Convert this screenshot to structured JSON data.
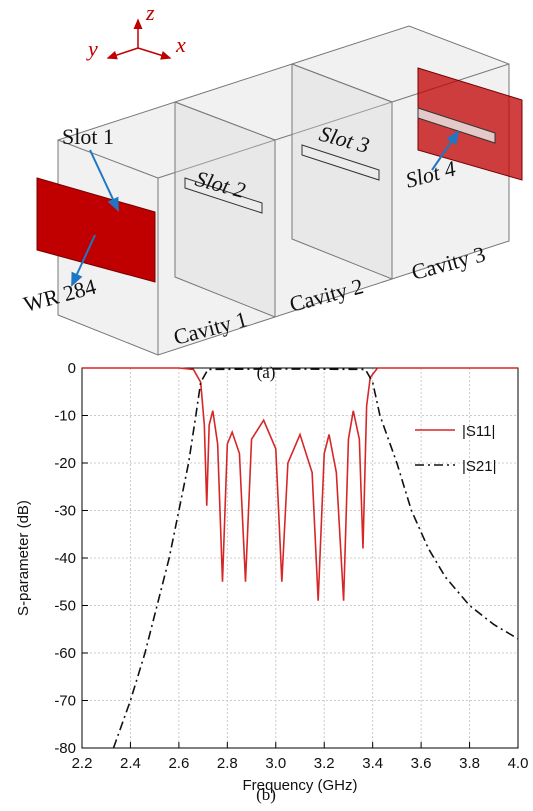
{
  "figure_a": {
    "axis_z": "z",
    "axis_y": "y",
    "axis_x": "x",
    "labels": [
      "Slot 1",
      "Slot 2",
      "Slot 3",
      "Slot 4",
      "WR 284",
      "Cavity 1",
      "Cavity 2",
      "Cavity 3"
    ],
    "caption": "(a)"
  },
  "chart_data": {
    "type": "line",
    "caption": "(b)",
    "x_label": "Frequency (GHz)",
    "y_label": "S-parameter (dB)",
    "xlim": [
      2.2,
      4.0
    ],
    "ylim": [
      -80,
      0
    ],
    "xticks": [
      2.2,
      2.4,
      2.6,
      2.8,
      {
        "value": 3,
        "label": "3.0"
      },
      3.2,
      3.4,
      3.6,
      3.8,
      {
        "value": 4,
        "label": "4.0"
      }
    ],
    "yticks": [
      0,
      -10,
      -20,
      -30,
      -40,
      -50,
      -60,
      -70,
      -80
    ],
    "grid": true,
    "legend": "upper right",
    "series": [
      {
        "name": "|S11|",
        "color": "#d62728",
        "dash": "solid",
        "x": [
          2.2,
          2.6,
          2.66,
          2.69,
          2.705,
          2.715,
          2.725,
          2.74,
          2.76,
          2.78,
          2.8,
          2.82,
          2.85,
          2.875,
          2.9,
          2.95,
          3.0,
          3.025,
          3.05,
          3.1,
          3.15,
          3.175,
          3.2,
          3.22,
          3.25,
          3.28,
          3.3,
          3.32,
          3.345,
          3.36,
          3.375,
          3.39,
          3.42,
          3.6,
          4.0
        ],
        "values": [
          0,
          0,
          -0.3,
          -3,
          -12,
          -29,
          -12,
          -9,
          -16,
          -45,
          -16,
          -13.5,
          -18,
          -45,
          -15,
          -11,
          -17,
          -45,
          -20,
          -14,
          -22,
          -49,
          -18,
          -14,
          -22,
          -49,
          -15,
          -9,
          -15,
          -38,
          -8,
          -2,
          0,
          0,
          0
        ]
      },
      {
        "name": "|S21|",
        "color": "#111111",
        "dash": "dashdot",
        "x": [
          2.33,
          2.4,
          2.46,
          2.51,
          2.56,
          2.6,
          2.64,
          2.67,
          2.69,
          2.72,
          3.0,
          3.37,
          3.4,
          3.43,
          3.5,
          3.56,
          3.63,
          3.7,
          3.8,
          3.9,
          4.0
        ],
        "values": [
          -80,
          -70,
          -60,
          -50,
          -40,
          -30,
          -20,
          -10,
          -3,
          -0.3,
          -0.2,
          -0.3,
          -3,
          -10,
          -20,
          -30,
          -38,
          -44,
          -50,
          -54,
          -57
        ]
      }
    ]
  }
}
